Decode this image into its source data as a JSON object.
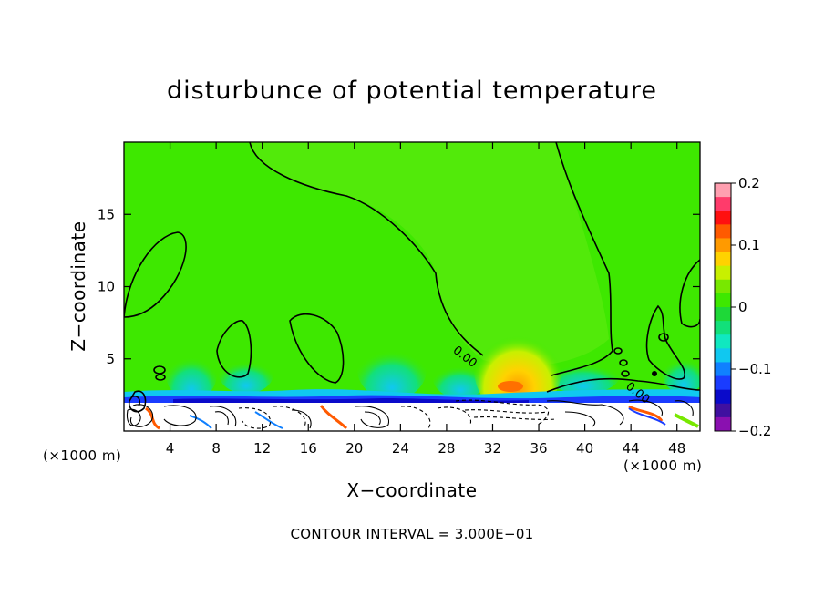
{
  "chart_data": {
    "type": "heatmap",
    "title": "disturbunce of potential temperature",
    "xlabel": "X−coordinate",
    "ylabel": "Z−coordinate",
    "x_unit": "(×1000 m)",
    "y_unit": "(×1000 m)",
    "xlim": [
      0,
      50
    ],
    "ylim": [
      0,
      20
    ],
    "x_ticks": [
      4,
      8,
      12,
      16,
      20,
      24,
      28,
      32,
      36,
      40,
      44,
      48
    ],
    "y_ticks": [
      5,
      10,
      15
    ],
    "x_tick_labels": [
      "4",
      "8",
      "12",
      "16",
      "20",
      "24",
      "28",
      "32",
      "36",
      "40",
      "44",
      "48"
    ],
    "y_tick_labels": [
      "5",
      "10",
      "15"
    ],
    "contour_labels": [
      {
        "text": "0.00",
        "x": 28.5,
        "z": 5.5
      },
      {
        "text": "0.00",
        "x": 43.5,
        "z": 3.0
      }
    ],
    "colorbar": {
      "range": [
        -0.2,
        0.2
      ],
      "ticks": [
        0.2,
        0.1,
        0,
        -0.1,
        -0.2
      ],
      "tick_labels": [
        "0.2",
        "0.1",
        "0",
        "−0.1",
        "−0.2"
      ],
      "colors": [
        "#ff9fb0",
        "#ff3b6b",
        "#ff1010",
        "#ff5a00",
        "#ff9a00",
        "#ffd200",
        "#c8f000",
        "#78e800",
        "#3ee800",
        "#1ed838",
        "#12e07a",
        "#10e8c0",
        "#10c8f0",
        "#1080ff",
        "#1a3cff",
        "#0a0aca",
        "#4010a0",
        "#8a10b0"
      ]
    },
    "footer": "CONTOUR INTERVAL = 3.000E−01",
    "grid": false
  }
}
